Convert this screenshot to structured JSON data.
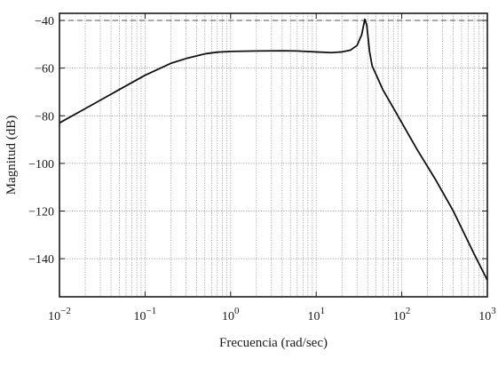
{
  "chart_data": {
    "type": "line",
    "title": "",
    "xlabel": "Frecuencia (rad/sec)",
    "ylabel": "Magnitud (dB)",
    "xscale": "log",
    "xlim": [
      0.01,
      1000
    ],
    "ylim": [
      -156,
      -37
    ],
    "x_ticks": [
      {
        "value": 0.01,
        "base": "10",
        "exp": "−2"
      },
      {
        "value": 0.1,
        "base": "10",
        "exp": "−1"
      },
      {
        "value": 1,
        "base": "10",
        "exp": "0"
      },
      {
        "value": 10,
        "base": "10",
        "exp": "1"
      },
      {
        "value": 100,
        "base": "10",
        "exp": "2"
      },
      {
        "value": 1000,
        "base": "10",
        "exp": "3"
      }
    ],
    "y_ticks": [
      {
        "value": -40,
        "label": "−40"
      },
      {
        "value": -60,
        "label": "−60"
      },
      {
        "value": -80,
        "label": "−80"
      },
      {
        "value": -100,
        "label": "−100"
      },
      {
        "value": -120,
        "label": "−120"
      },
      {
        "value": -140,
        "label": "−140"
      }
    ],
    "grid": true,
    "reference_line": {
      "y": -40,
      "style": "dashed"
    },
    "series": [
      {
        "x": [
          0.01,
          0.02,
          0.05,
          0.1,
          0.2,
          0.3,
          0.5,
          0.7,
          1,
          2,
          4,
          6,
          10,
          15,
          20,
          25,
          30,
          34,
          37,
          39,
          42,
          45,
          60,
          90,
          150,
          250,
          400,
          700,
          1000
        ],
        "y": [
          -83,
          -77,
          -69,
          -63,
          -58,
          -56,
          -54,
          -53.3,
          -53,
          -52.8,
          -52.7,
          -52.8,
          -53.2,
          -53.5,
          -53.2,
          -52.5,
          -50.5,
          -46,
          -39.5,
          -42,
          -53,
          -59,
          -69,
          -80,
          -94,
          -107,
          -120,
          -138,
          -149
        ]
      }
    ]
  }
}
